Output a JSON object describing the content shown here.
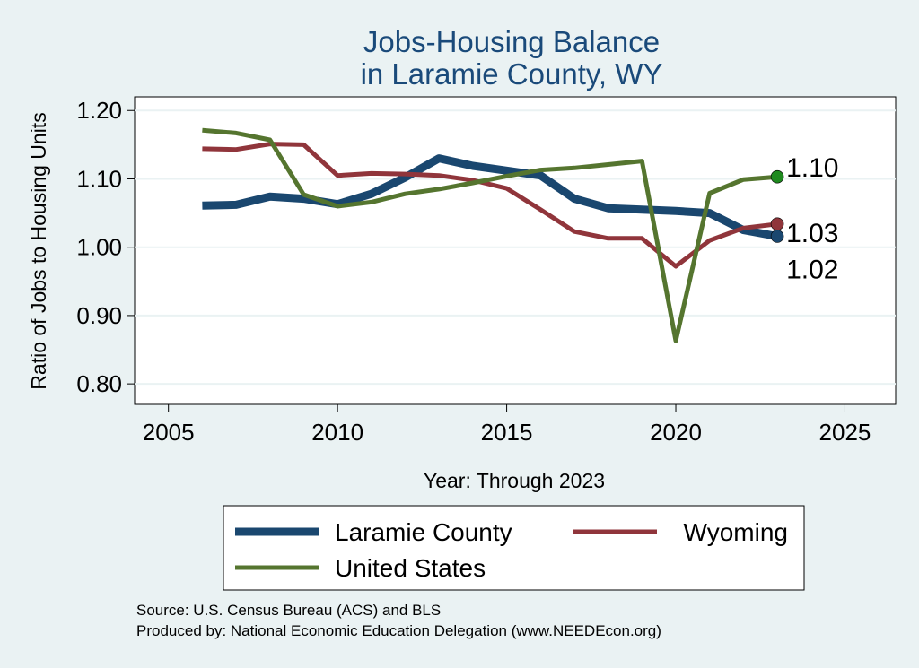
{
  "chart_data": {
    "type": "line",
    "title": [
      "Jobs-Housing Balance",
      "in Laramie County, WY"
    ],
    "xlabel": "Year: Through 2023",
    "ylabel": "Ratio of Jobs to Housing Units",
    "xlim": [
      2004,
      2026.5
    ],
    "ylim": [
      0.77,
      1.22
    ],
    "xticks": [
      2005,
      2010,
      2015,
      2020,
      2025
    ],
    "yticks": [
      0.8,
      0.9,
      1.0,
      1.1,
      1.2
    ],
    "ytick_labels": [
      "0.80",
      "0.90",
      "1.00",
      "1.10",
      "1.20"
    ],
    "grid": true,
    "legend_position": "bottom",
    "x": [
      2006,
      2007,
      2008,
      2009,
      2010,
      2011,
      2012,
      2013,
      2014,
      2015,
      2016,
      2017,
      2018,
      2019,
      2020,
      2021,
      2022,
      2023
    ],
    "series": [
      {
        "name": "Laramie County",
        "color": "#1a476f",
        "width": 9,
        "values": [
          1.061,
          1.062,
          1.074,
          1.071,
          1.063,
          1.078,
          1.102,
          1.13,
          1.119,
          1.112,
          1.105,
          1.071,
          1.057,
          1.055,
          1.053,
          1.05,
          1.025,
          1.016
        ],
        "end_label": "1.02"
      },
      {
        "name": "Wyoming",
        "color": "#90353b",
        "width": 5,
        "values": [
          1.144,
          1.143,
          1.151,
          1.15,
          1.105,
          1.108,
          1.107,
          1.105,
          1.098,
          1.086,
          1.055,
          1.023,
          1.013,
          1.013,
          0.972,
          1.01,
          1.028,
          1.034
        ],
        "end_label": "1.03"
      },
      {
        "name": "United States",
        "color": "#55752f",
        "width": 5,
        "values": [
          1.171,
          1.167,
          1.157,
          1.077,
          1.06,
          1.066,
          1.078,
          1.085,
          1.094,
          1.104,
          1.113,
          1.116,
          1.121,
          1.126,
          0.863,
          1.079,
          1.099,
          1.103
        ],
        "end_label": "1.10"
      }
    ],
    "source_lines": [
      "Source: U.S. Census Bureau (ACS) and BLS",
      "Produced by: National Economic Education Delegation (www.NEEDEcon.org)"
    ]
  }
}
